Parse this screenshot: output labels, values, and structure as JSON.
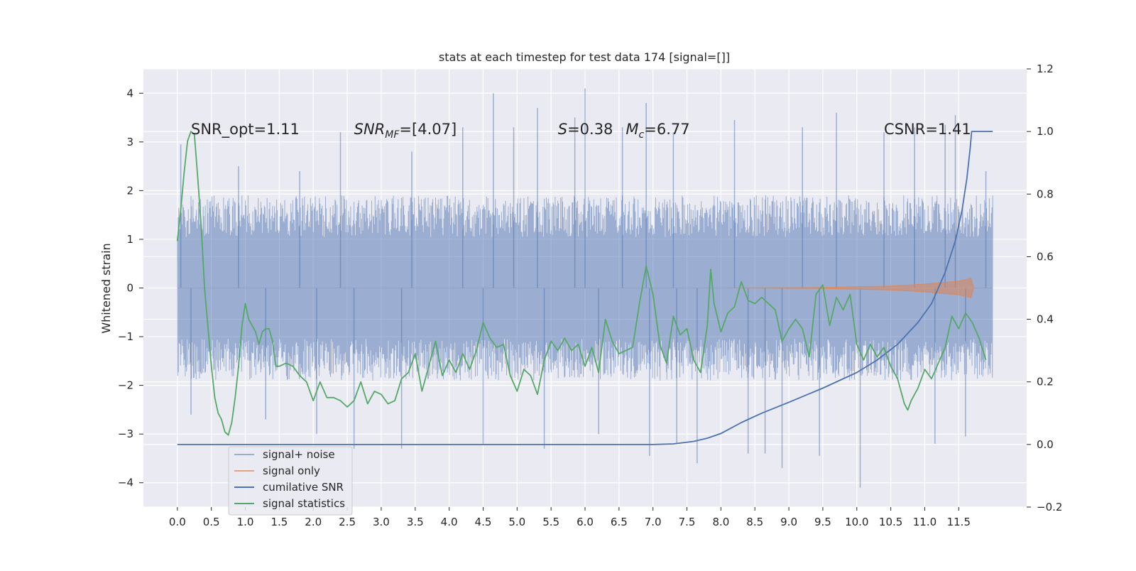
{
  "chart_data": {
    "type": "line",
    "title": "stats at each timestep for test data 174 [signal=[]]",
    "ylabel": "Whitened strain",
    "y2label": "",
    "xlim": [
      -0.5,
      12.5
    ],
    "ylim": [
      -4.5,
      4.5
    ],
    "y2lim": [
      -0.2,
      1.2
    ],
    "x_ticks": [
      0.0,
      0.5,
      1.0,
      1.5,
      2.0,
      2.5,
      3.0,
      3.5,
      4.0,
      4.5,
      5.0,
      5.5,
      6.0,
      6.5,
      7.0,
      7.5,
      8.0,
      8.5,
      9.0,
      9.5,
      10.0,
      10.5,
      11.0,
      11.5
    ],
    "x_tick_labels": [
      "0.0",
      "0.5",
      "1.0",
      "1.5",
      "2.0",
      "2.5",
      "3.0",
      "3.5",
      "4.0",
      "4.5",
      "5.0",
      "5.5",
      "6.0",
      "6.5",
      "7.0",
      "7.5",
      "8.0",
      "8.5",
      "9.0",
      "9.5",
      "10.0",
      "10.5",
      "11.0",
      "11.5"
    ],
    "y_ticks": [
      4,
      3,
      2,
      1,
      0,
      -1,
      -2,
      -3,
      -4
    ],
    "y_tick_labels": [
      "4",
      "3",
      "2",
      "1",
      "0",
      "−1",
      "−2",
      "−3",
      "−4"
    ],
    "y2_ticks": [
      1.2,
      1.0,
      0.8,
      0.6,
      0.4,
      0.2,
      0.0,
      -0.2
    ],
    "y2_tick_labels": [
      "1.2",
      "1.0",
      "0.8",
      "0.6",
      "0.4",
      "0.2",
      "0.0",
      "−0.2"
    ],
    "grid": true,
    "legend_position": "lower-left",
    "colors": {
      "background": "#eaeaf2",
      "grid": "#ffffff",
      "signal_noise": "#4c72b0",
      "signal_only": "#dd8452",
      "cumulative_snr": "#4c72b0",
      "signal_statistics": "#55a868"
    },
    "annotations": [
      {
        "id": "snr-opt",
        "x": 0.2,
        "y2": 1.0,
        "text": "SNR_opt=1.11"
      },
      {
        "id": "snr-mf",
        "x": 2.6,
        "y2": 1.0,
        "text": "SNR_MF=[4.07]"
      },
      {
        "id": "s-stat",
        "x": 5.6,
        "y2": 1.0,
        "text": "S=0.38"
      },
      {
        "id": "chirp-mass",
        "x": 6.6,
        "y2": 1.0,
        "text": "M_c=6.77"
      },
      {
        "id": "csnr",
        "x": 10.4,
        "y2": 1.0,
        "text": "CSNR=1.41"
      }
    ],
    "series": [
      {
        "name": "signal+ noise",
        "axis": "left",
        "style": "dense-noise",
        "x_range": [
          0.0,
          12.0
        ],
        "core_band": [
          -1.9,
          1.9
        ],
        "spikes": [
          [
            0.05,
            2.95
          ],
          [
            0.2,
            -2.6
          ],
          [
            0.9,
            2.5
          ],
          [
            1.3,
            -2.7
          ],
          [
            1.8,
            2.4
          ],
          [
            2.05,
            -3.0
          ],
          [
            2.4,
            3.2
          ],
          [
            2.6,
            -3.3
          ],
          [
            3.45,
            2.8
          ],
          [
            3.3,
            -3.3
          ],
          [
            4.2,
            3.3
          ],
          [
            4.5,
            -3.2
          ],
          [
            4.65,
            4.0
          ],
          [
            4.95,
            3.3
          ],
          [
            5.3,
            3.7
          ],
          [
            5.4,
            -3.3
          ],
          [
            5.85,
            3.5
          ],
          [
            6.0,
            4.1
          ],
          [
            6.2,
            -3.0
          ],
          [
            6.55,
            3.3
          ],
          [
            6.9,
            3.8
          ],
          [
            6.95,
            -3.45
          ],
          [
            7.3,
            3.2
          ],
          [
            7.35,
            -3.2
          ],
          [
            7.65,
            -3.6
          ],
          [
            8.2,
            3.45
          ],
          [
            8.4,
            -3.4
          ],
          [
            8.65,
            -3.4
          ],
          [
            8.9,
            -3.7
          ],
          [
            9.2,
            3.3
          ],
          [
            9.45,
            -3.45
          ],
          [
            9.7,
            3.6
          ],
          [
            10.05,
            -4.1
          ],
          [
            10.4,
            3.2
          ],
          [
            10.85,
            3.3
          ],
          [
            11.15,
            -3.2
          ],
          [
            11.3,
            3.35
          ],
          [
            11.45,
            3.55
          ],
          [
            11.6,
            -3.05
          ],
          [
            11.9,
            2.4
          ]
        ]
      },
      {
        "name": "signal only",
        "axis": "left",
        "style": "chirp",
        "points": [
          [
            0.0,
            0.0
          ],
          [
            8.0,
            0.0
          ],
          [
            9.5,
            0.01
          ],
          [
            10.5,
            0.04
          ],
          [
            11.0,
            0.08
          ],
          [
            11.5,
            0.14
          ],
          [
            11.68,
            0.2
          ],
          [
            11.72,
            0.0
          ],
          [
            12.0,
            0.0
          ]
        ]
      },
      {
        "name": "cumilative SNR",
        "axis": "right",
        "points": [
          [
            0.0,
            0.0
          ],
          [
            7.0,
            0.0
          ],
          [
            7.3,
            0.002
          ],
          [
            7.6,
            0.01
          ],
          [
            7.8,
            0.02
          ],
          [
            8.0,
            0.035
          ],
          [
            8.3,
            0.07
          ],
          [
            8.6,
            0.1
          ],
          [
            9.0,
            0.135
          ],
          [
            9.5,
            0.18
          ],
          [
            10.0,
            0.23
          ],
          [
            10.3,
            0.27
          ],
          [
            10.6,
            0.32
          ],
          [
            10.9,
            0.39
          ],
          [
            11.1,
            0.45
          ],
          [
            11.3,
            0.55
          ],
          [
            11.45,
            0.65
          ],
          [
            11.55,
            0.75
          ],
          [
            11.62,
            0.85
          ],
          [
            11.67,
            0.95
          ],
          [
            11.69,
            1.0
          ],
          [
            12.0,
            1.0
          ]
        ]
      },
      {
        "name": "signal statistics",
        "axis": "right",
        "points": [
          [
            0.0,
            0.65
          ],
          [
            0.05,
            0.75
          ],
          [
            0.1,
            0.87
          ],
          [
            0.15,
            0.97
          ],
          [
            0.2,
            1.0
          ],
          [
            0.25,
            0.99
          ],
          [
            0.3,
            0.85
          ],
          [
            0.35,
            0.7
          ],
          [
            0.4,
            0.5
          ],
          [
            0.5,
            0.25
          ],
          [
            0.55,
            0.15
          ],
          [
            0.6,
            0.1
          ],
          [
            0.65,
            0.08
          ],
          [
            0.7,
            0.04
          ],
          [
            0.75,
            0.03
          ],
          [
            0.8,
            0.07
          ],
          [
            0.85,
            0.15
          ],
          [
            0.9,
            0.25
          ],
          [
            0.95,
            0.38
          ],
          [
            1.0,
            0.45
          ],
          [
            1.05,
            0.4
          ],
          [
            1.1,
            0.38
          ],
          [
            1.15,
            0.36
          ],
          [
            1.2,
            0.32
          ],
          [
            1.25,
            0.36
          ],
          [
            1.3,
            0.37
          ],
          [
            1.35,
            0.37
          ],
          [
            1.4,
            0.33
          ],
          [
            1.45,
            0.25
          ],
          [
            1.5,
            0.25
          ],
          [
            1.6,
            0.26
          ],
          [
            1.7,
            0.25
          ],
          [
            1.8,
            0.22
          ],
          [
            1.9,
            0.2
          ],
          [
            2.0,
            0.14
          ],
          [
            2.1,
            0.2
          ],
          [
            2.2,
            0.15
          ],
          [
            2.3,
            0.15
          ],
          [
            2.4,
            0.14
          ],
          [
            2.5,
            0.12
          ],
          [
            2.6,
            0.14
          ],
          [
            2.7,
            0.2
          ],
          [
            2.8,
            0.13
          ],
          [
            2.9,
            0.17
          ],
          [
            3.0,
            0.16
          ],
          [
            3.1,
            0.13
          ],
          [
            3.2,
            0.14
          ],
          [
            3.3,
            0.21
          ],
          [
            3.4,
            0.23
          ],
          [
            3.5,
            0.29
          ],
          [
            3.6,
            0.17
          ],
          [
            3.7,
            0.25
          ],
          [
            3.8,
            0.33
          ],
          [
            3.9,
            0.22
          ],
          [
            4.0,
            0.27
          ],
          [
            4.1,
            0.23
          ],
          [
            4.2,
            0.29
          ],
          [
            4.3,
            0.24
          ],
          [
            4.4,
            0.3
          ],
          [
            4.5,
            0.39
          ],
          [
            4.6,
            0.34
          ],
          [
            4.7,
            0.31
          ],
          [
            4.8,
            0.32
          ],
          [
            4.9,
            0.22
          ],
          [
            5.0,
            0.17
          ],
          [
            5.1,
            0.24
          ],
          [
            5.2,
            0.22
          ],
          [
            5.3,
            0.16
          ],
          [
            5.4,
            0.27
          ],
          [
            5.5,
            0.33
          ],
          [
            5.6,
            0.3
          ],
          [
            5.7,
            0.34
          ],
          [
            5.8,
            0.3
          ],
          [
            5.9,
            0.32
          ],
          [
            6.0,
            0.25
          ],
          [
            6.1,
            0.31
          ],
          [
            6.2,
            0.23
          ],
          [
            6.3,
            0.4
          ],
          [
            6.4,
            0.33
          ],
          [
            6.5,
            0.29
          ],
          [
            6.6,
            0.3
          ],
          [
            6.7,
            0.31
          ],
          [
            6.8,
            0.45
          ],
          [
            6.9,
            0.57
          ],
          [
            7.0,
            0.48
          ],
          [
            7.1,
            0.32
          ],
          [
            7.2,
            0.26
          ],
          [
            7.3,
            0.41
          ],
          [
            7.4,
            0.35
          ],
          [
            7.5,
            0.37
          ],
          [
            7.6,
            0.27
          ],
          [
            7.7,
            0.23
          ],
          [
            7.8,
            0.38
          ],
          [
            7.85,
            0.56
          ],
          [
            7.9,
            0.45
          ],
          [
            8.0,
            0.36
          ],
          [
            8.1,
            0.42
          ],
          [
            8.2,
            0.44
          ],
          [
            8.3,
            0.52
          ],
          [
            8.4,
            0.46
          ],
          [
            8.5,
            0.45
          ],
          [
            8.6,
            0.47
          ],
          [
            8.7,
            0.45
          ],
          [
            8.8,
            0.43
          ],
          [
            8.9,
            0.33
          ],
          [
            9.0,
            0.37
          ],
          [
            9.1,
            0.4
          ],
          [
            9.2,
            0.37
          ],
          [
            9.3,
            0.28
          ],
          [
            9.4,
            0.48
          ],
          [
            9.5,
            0.51
          ],
          [
            9.6,
            0.38
          ],
          [
            9.7,
            0.47
          ],
          [
            9.8,
            0.43
          ],
          [
            9.9,
            0.48
          ],
          [
            10.0,
            0.32
          ],
          [
            10.1,
            0.27
          ],
          [
            10.2,
            0.32
          ],
          [
            10.3,
            0.28
          ],
          [
            10.4,
            0.31
          ],
          [
            10.5,
            0.25
          ],
          [
            10.6,
            0.21
          ],
          [
            10.7,
            0.13
          ],
          [
            10.75,
            0.11
          ],
          [
            10.8,
            0.14
          ],
          [
            10.9,
            0.18
          ],
          [
            11.0,
            0.24
          ],
          [
            11.1,
            0.21
          ],
          [
            11.2,
            0.26
          ],
          [
            11.3,
            0.31
          ],
          [
            11.4,
            0.41
          ],
          [
            11.5,
            0.37
          ],
          [
            11.6,
            0.42
          ],
          [
            11.7,
            0.39
          ],
          [
            11.8,
            0.34
          ],
          [
            11.9,
            0.27
          ]
        ]
      }
    ],
    "legend": [
      {
        "key": "signal_noise",
        "label": "signal+ noise"
      },
      {
        "key": "signal_only",
        "label": "signal only"
      },
      {
        "key": "cumulative_snr",
        "label": "cumilative SNR"
      },
      {
        "key": "signal_statistics",
        "label": "signal statistics"
      }
    ]
  }
}
